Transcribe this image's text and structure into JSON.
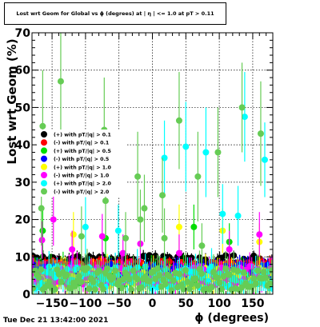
{
  "timestamp": "Tue Dec 21 13:42:00 2021",
  "chart_data": {
    "type": "scatter",
    "title": "Lost wrt Geom for Global vs ϕ (degrees) at | η | <= 1.0 at pT > 0.11",
    "xlabel": "ϕ (degrees)",
    "ylabel": "Lost wrt Geom (%)",
    "xlim": [
      -180,
      180
    ],
    "ylim": [
      0,
      70
    ],
    "xticks": [
      -150,
      -100,
      -50,
      0,
      50,
      100,
      150
    ],
    "yticks": [
      0,
      10,
      20,
      30,
      40,
      50,
      60,
      70
    ],
    "xtick_labels": [
      "−150",
      "−100",
      "−50",
      "0",
      "50",
      "100",
      "150"
    ],
    "ytick_labels": [
      "0",
      "10",
      "20",
      "30",
      "40",
      "50",
      "60",
      "70"
    ],
    "grid": true,
    "legend_placement": "center-left",
    "series": [
      {
        "name": "(+) with pT/|q| > 0.1",
        "color": "#000000",
        "level": 9.0,
        "spread": 1.5,
        "err": 1.2,
        "seed": 11,
        "highlights": []
      },
      {
        "name": "(-) with pT/|q| > 0.1",
        "color": "#ff0000",
        "level": 7.5,
        "spread": 1.5,
        "err": 1.2,
        "seed": 23,
        "highlights": []
      },
      {
        "name": "(+) with pT/|q| > 0.5",
        "color": "#00dd00",
        "level": 5.0,
        "spread": 2.5,
        "err": 3.0,
        "seed": 37,
        "highlights": [
          [
            -164,
            17,
            6
          ],
          [
            -70,
            15,
            5
          ],
          [
            62,
            18,
            6
          ],
          [
            115,
            14,
            5
          ]
        ]
      },
      {
        "name": "(-) with pT/|q| > 0.5",
        "color": "#0000ff",
        "level": 6.0,
        "spread": 2.0,
        "err": 2.0,
        "seed": 41,
        "highlights": []
      },
      {
        "name": "(+) with pT/|q| > 1.0",
        "color": "#ffff00",
        "level": 4.5,
        "spread": 2.5,
        "err": 3.0,
        "seed": 53,
        "highlights": [
          [
            -118,
            16,
            6
          ],
          [
            40,
            18,
            6
          ],
          [
            105,
            17,
            6
          ],
          [
            160,
            14,
            5
          ]
        ]
      },
      {
        "name": "(-) with pT/|q| > 1.0",
        "color": "#ff00ff",
        "level": 5.0,
        "spread": 2.5,
        "err": 3.0,
        "seed": 67,
        "highlights": [
          [
            -165,
            14.5,
            5
          ],
          [
            -148,
            20,
            7
          ],
          [
            -120,
            12,
            5
          ],
          [
            -75,
            15.5,
            6
          ],
          [
            -44,
            11,
            5
          ],
          [
            -18,
            13.5,
            5
          ],
          [
            40,
            11,
            5
          ],
          [
            115,
            12,
            5
          ],
          [
            160,
            16,
            6
          ]
        ]
      },
      {
        "name": "(+) with pT/|q| > 2.0",
        "color": "#00ffff",
        "level": 4.5,
        "spread": 3.0,
        "err": 3.5,
        "seed": 71,
        "highlights": [
          [
            -100,
            18,
            8
          ],
          [
            -51,
            17,
            7
          ],
          [
            18,
            36.5,
            10
          ],
          [
            50,
            39.5,
            12
          ],
          [
            80,
            38,
            12
          ],
          [
            105,
            21.5,
            8
          ],
          [
            128,
            21,
            8
          ],
          [
            138,
            47.5,
            12
          ],
          [
            168,
            36,
            10
          ]
        ]
      },
      {
        "name": "(-) with pT/|q| > 2.0",
        "color": "#66cc55",
        "level": 4.0,
        "spread": 3.0,
        "err": 3.5,
        "seed": 89,
        "highlights": [
          [
            -164,
            45,
            15
          ],
          [
            -166,
            23,
            10
          ],
          [
            -137,
            57,
            13
          ],
          [
            -106,
            15.5,
            8
          ],
          [
            -72,
            44,
            14
          ],
          [
            -70,
            25,
            10
          ],
          [
            -22,
            31.5,
            12
          ],
          [
            -18,
            20,
            8
          ],
          [
            -12,
            23,
            9
          ],
          [
            15,
            26.5,
            10
          ],
          [
            18,
            15,
            8
          ],
          [
            40,
            46.5,
            13
          ],
          [
            68,
            31.5,
            12
          ],
          [
            74,
            13,
            6
          ],
          [
            98,
            38,
            12
          ],
          [
            134,
            50,
            12
          ],
          [
            162,
            43,
            14
          ],
          [
            -40,
            15,
            7
          ]
        ]
      }
    ]
  }
}
